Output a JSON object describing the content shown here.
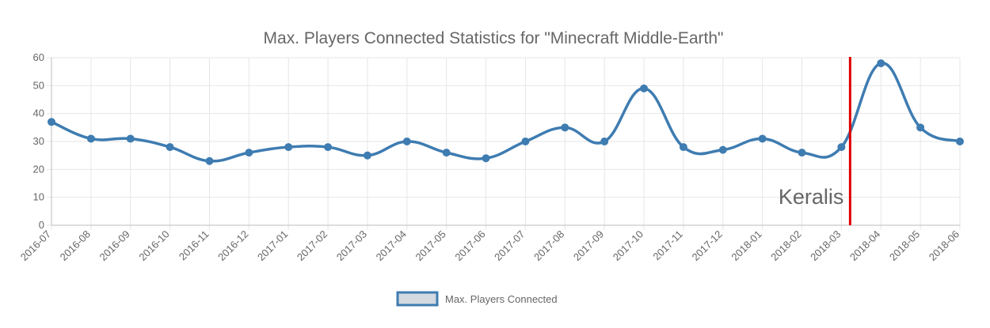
{
  "chart_data": {
    "type": "line",
    "title": "Max. Players Connected Statistics for \"Minecraft Middle-Earth\"",
    "categories": [
      "2016-07",
      "2016-08",
      "2016-09",
      "2016-10",
      "2016-11",
      "2016-12",
      "2017-01",
      "2017-02",
      "2017-03",
      "2017-04",
      "2017-05",
      "2017-06",
      "2017-07",
      "2017-08",
      "2017-09",
      "2017-10",
      "2017-11",
      "2017-12",
      "2018-01",
      "2018-02",
      "2018-03",
      "2018-04",
      "2018-05",
      "2018-06"
    ],
    "series": [
      {
        "name": "Max. Players Connected",
        "values": [
          37,
          31,
          31,
          28,
          23,
          26,
          28,
          28,
          25,
          30,
          26,
          24,
          30,
          35,
          30,
          49,
          28,
          27,
          31,
          26,
          28,
          58,
          35,
          30
        ],
        "color": "#3e7cb1",
        "fill": "#d3d9e0"
      }
    ],
    "ylim": [
      0,
      60
    ],
    "yticks": [
      0,
      10,
      20,
      30,
      40,
      50,
      60
    ],
    "grid": true,
    "legend_position": "bottom",
    "annotation": {
      "label": "Keralis",
      "after_category": "2018-03",
      "color": "#e00000"
    }
  }
}
